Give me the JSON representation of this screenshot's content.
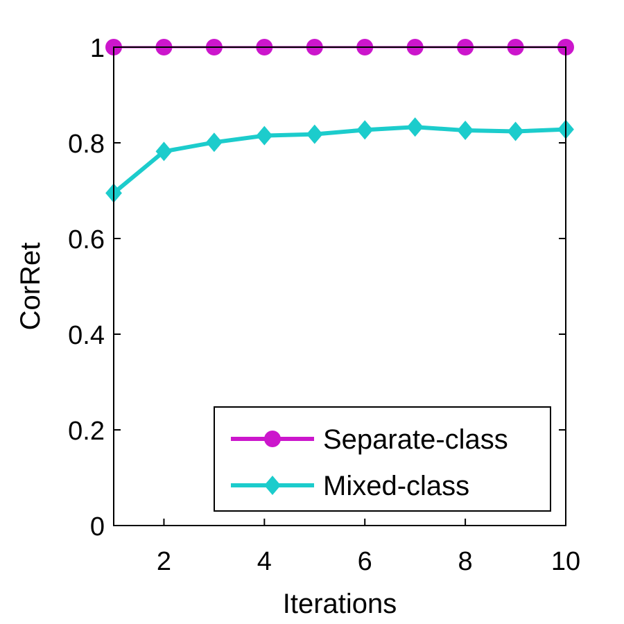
{
  "chart_data": {
    "type": "line",
    "title": "",
    "xlabel": "Iterations",
    "ylabel": "CorRet",
    "xlim": [
      1,
      10
    ],
    "ylim": [
      0,
      1
    ],
    "x": [
      1,
      2,
      3,
      4,
      5,
      6,
      7,
      8,
      9,
      10
    ],
    "xticks": [
      2,
      4,
      6,
      8,
      10
    ],
    "yticks": [
      0,
      0.2,
      0.4,
      0.6,
      0.8,
      1
    ],
    "xtick_labels": [
      "2",
      "4",
      "6",
      "8",
      "10"
    ],
    "ytick_labels": [
      "0",
      "0.2",
      "0.4",
      "0.6",
      "0.8",
      "1"
    ],
    "grid": false,
    "legend_position": "bottom-right",
    "series": [
      {
        "name": "Separate-class",
        "color": "#cc16cc",
        "marker": "circle",
        "values": [
          1,
          1,
          1,
          1,
          1,
          1,
          1,
          1,
          1,
          1
        ]
      },
      {
        "name": "Mixed-class",
        "color": "#1ccccc",
        "marker": "diamond",
        "values": [
          0.695,
          0.782,
          0.801,
          0.815,
          0.818,
          0.827,
          0.833,
          0.826,
          0.824,
          0.828
        ]
      }
    ]
  }
}
